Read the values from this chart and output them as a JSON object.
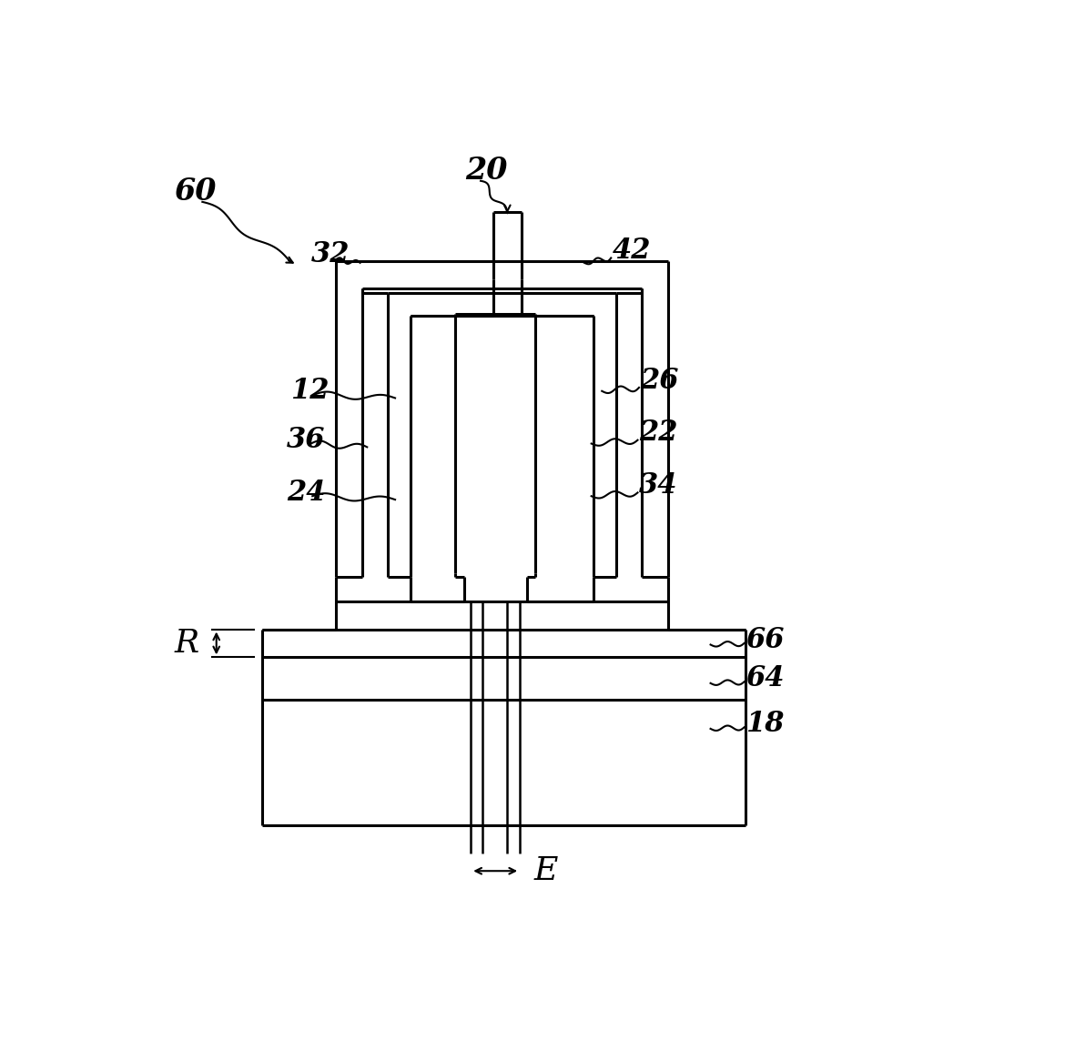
{
  "bg_color": "#ffffff",
  "lc": "#000000",
  "lw": 2.2,
  "lw_thin": 1.8,
  "fig_w": 11.7,
  "fig_h": 11.43,
  "dpi": 100
}
